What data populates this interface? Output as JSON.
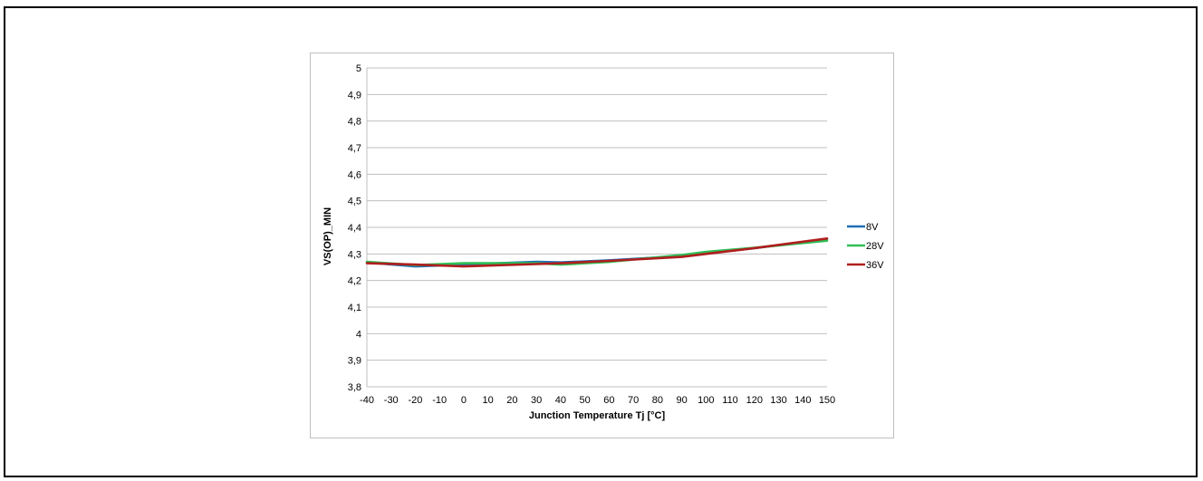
{
  "chart_data": {
    "type": "line",
    "xlabel": "Junction Temperature Tj [°C]",
    "ylabel": "VS(OP)_MIN",
    "xlim": [
      -40,
      150
    ],
    "ylim": [
      3.8,
      5
    ],
    "x_ticks": [
      -40,
      -30,
      -20,
      -10,
      0,
      10,
      20,
      30,
      40,
      50,
      60,
      70,
      80,
      90,
      100,
      110,
      120,
      130,
      140,
      150
    ],
    "y_ticks": [
      "3,8",
      "3,9",
      "4",
      "4,1",
      "4,2",
      "4,3",
      "4,4",
      "4,5",
      "4,6",
      "4,7",
      "4,8",
      "4,9",
      "5"
    ],
    "y_tick_values": [
      3.8,
      3.9,
      4.0,
      4.1,
      4.2,
      4.3,
      4.4,
      4.5,
      4.6,
      4.7,
      4.8,
      4.9,
      5.0
    ],
    "grid": "horizontal",
    "legend_position": "right",
    "x": [
      -40,
      -20,
      0,
      30,
      40,
      60,
      90,
      100,
      120,
      150
    ],
    "series": [
      {
        "name": "8V",
        "color": "#1f6fb4",
        "values": [
          4.268,
          4.253,
          4.26,
          4.27,
          4.268,
          4.276,
          4.292,
          4.302,
          4.322,
          4.356
        ]
      },
      {
        "name": "28V",
        "color": "#2fbf55",
        "values": [
          4.27,
          4.258,
          4.265,
          4.265,
          4.26,
          4.27,
          4.296,
          4.308,
          4.323,
          4.35
        ]
      },
      {
        "name": "36V",
        "color": "#b01e1e",
        "values": [
          4.265,
          4.26,
          4.253,
          4.262,
          4.265,
          4.274,
          4.289,
          4.3,
          4.322,
          4.358
        ]
      }
    ]
  }
}
